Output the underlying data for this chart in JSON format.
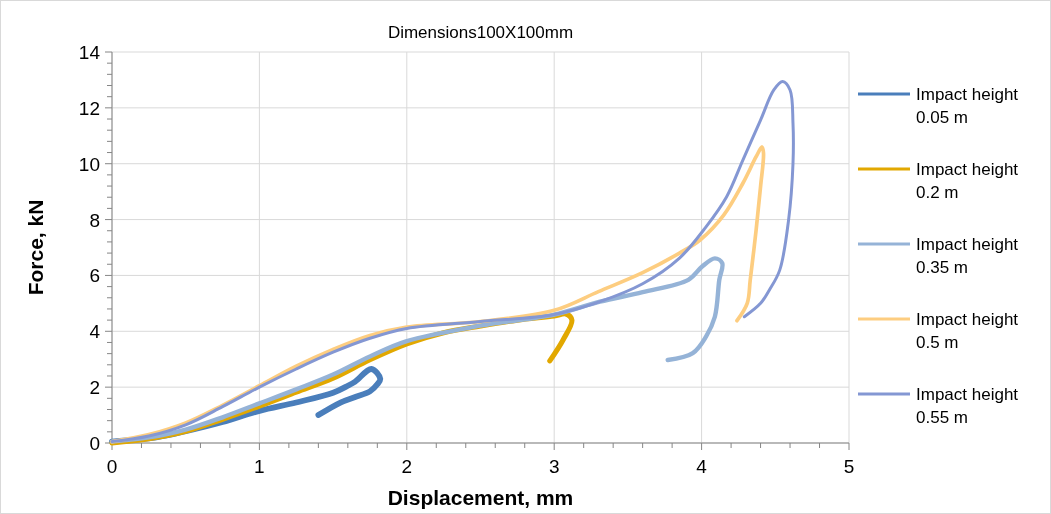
{
  "chart_data": {
    "type": "line",
    "title": "Dimensions100X100mm",
    "xlabel": "Displacement, mm",
    "ylabel": "Force, kN",
    "xlim": [
      0,
      5
    ],
    "ylim": [
      0,
      14
    ],
    "xticks": [
      0,
      {
        "value": 0.2,
        "label": null
      },
      {
        "value": 0.4,
        "label": null
      },
      {
        "value": 0.6,
        "label": null
      },
      {
        "value": 0.8,
        "label": null
      },
      1,
      {
        "value": 1.2,
        "label": null
      },
      {
        "value": 1.4,
        "label": null
      },
      {
        "value": 1.6,
        "label": null
      },
      {
        "value": 1.8,
        "label": null
      },
      2,
      {
        "value": 2.2,
        "label": null
      },
      {
        "value": 2.4,
        "label": null
      },
      {
        "value": 2.6,
        "label": null
      },
      {
        "value": 2.8,
        "label": null
      },
      3,
      {
        "value": 3.2,
        "label": null
      },
      {
        "value": 3.4,
        "label": null
      },
      {
        "value": 3.6,
        "label": null
      },
      {
        "value": 3.8,
        "label": null
      },
      4,
      {
        "value": 4.2,
        "label": null
      },
      {
        "value": 4.4,
        "label": null
      },
      {
        "value": 4.6,
        "label": null
      },
      {
        "value": 4.8,
        "label": null
      },
      5
    ],
    "yticks": [
      0,
      {
        "value": 0.4,
        "label": null
      },
      {
        "value": 0.8,
        "label": null
      },
      {
        "value": 1.2,
        "label": null
      },
      {
        "value": 1.6,
        "label": null
      },
      2,
      {
        "value": 2.4,
        "label": null
      },
      {
        "value": 2.8,
        "label": null
      },
      {
        "value": 3.2,
        "label": null
      },
      {
        "value": 3.6,
        "label": null
      },
      4,
      {
        "value": 4.4,
        "label": null
      },
      {
        "value": 4.8,
        "label": null
      },
      {
        "value": 5.2,
        "label": null
      },
      {
        "value": 5.6,
        "label": null
      },
      6,
      {
        "value": 6.4,
        "label": null
      },
      {
        "value": 6.8,
        "label": null
      },
      {
        "value": 7.2,
        "label": null
      },
      {
        "value": 7.6,
        "label": null
      },
      8,
      {
        "value": 8.4,
        "label": null
      },
      {
        "value": 8.8,
        "label": null
      },
      {
        "value": 9.2,
        "label": null
      },
      {
        "value": 9.6,
        "label": null
      },
      10,
      {
        "value": 10.4,
        "label": null
      },
      {
        "value": 10.8,
        "label": null
      },
      {
        "value": 11.2,
        "label": null
      },
      {
        "value": 11.6,
        "label": null
      },
      12,
      {
        "value": 12.4,
        "label": null
      },
      {
        "value": 12.8,
        "label": null
      },
      {
        "value": 13.2,
        "label": null
      },
      {
        "value": 13.6,
        "label": null
      },
      14
    ],
    "grid": true,
    "legend": "right",
    "marker": "none",
    "line_style": "solid",
    "series": [
      {
        "name": "Impact height 0.05 m",
        "color": "#4a7ebb",
        "x": [
          0,
          0.3,
          0.5,
          0.75,
          1,
          1.25,
          1.5,
          1.6,
          1.65,
          1.76,
          1.82,
          1.8,
          1.75,
          1.65,
          1.55,
          1.4
        ],
        "values": [
          0.05,
          0.2,
          0.42,
          0.75,
          1.15,
          1.45,
          1.8,
          2.05,
          2.2,
          2.65,
          2.3,
          2.1,
          1.85,
          1.65,
          1.45,
          1.0
        ]
      },
      {
        "name": "Impact height 0.2 m",
        "color": "#e2a800",
        "x": [
          0,
          0.25,
          0.5,
          0.75,
          1,
          1.25,
          1.5,
          1.75,
          2,
          2.25,
          2.5,
          2.75,
          3,
          3.08,
          3.12,
          3.06,
          2.97
        ],
        "values": [
          0,
          0.15,
          0.42,
          0.85,
          1.32,
          1.82,
          2.32,
          2.98,
          3.55,
          3.95,
          4.19,
          4.4,
          4.55,
          4.62,
          4.4,
          3.69,
          2.94
        ]
      },
      {
        "name": "Impact height 0.35 m",
        "color": "#95b3d7",
        "x": [
          0,
          0.25,
          0.5,
          0.75,
          1,
          1.25,
          1.5,
          1.75,
          2,
          2.5,
          3,
          3.31,
          3.6,
          3.91,
          4.0,
          4.09,
          4.14,
          4.12,
          4.09,
          4.03,
          3.94,
          3.77
        ],
        "values": [
          0.05,
          0.2,
          0.48,
          0.92,
          1.42,
          1.92,
          2.45,
          3.1,
          3.65,
          4.2,
          4.6,
          5.06,
          5.4,
          5.84,
          6.3,
          6.61,
          6.44,
          5.84,
          4.52,
          3.81,
          3.22,
          2.97
        ]
      },
      {
        "name": "Impact height 0.5 m",
        "color": "#fdcd80",
        "x": [
          0,
          0.25,
          0.5,
          0.75,
          1,
          1.25,
          1.5,
          1.75,
          2,
          2.5,
          3,
          3.3,
          3.6,
          3.85,
          3.99,
          4.15,
          4.28,
          4.37,
          4.41,
          4.42,
          4.4,
          4.37,
          4.33,
          4.31,
          4.24
        ],
        "values": [
          0.05,
          0.3,
          0.72,
          1.35,
          2.05,
          2.75,
          3.35,
          3.85,
          4.15,
          4.35,
          4.75,
          5.42,
          6.1,
          6.8,
          7.27,
          8.16,
          9.3,
          10.25,
          10.6,
          10.38,
          9.18,
          7.63,
          5.84,
          5.01,
          4.38
        ]
      },
      {
        "name": "Impact height 0.55 m",
        "color": "#8497d3",
        "x": [
          0,
          0.25,
          0.5,
          0.75,
          1,
          1.25,
          1.5,
          1.75,
          2,
          2.5,
          3,
          3.31,
          3.6,
          3.85,
          4.03,
          4.17,
          4.28,
          4.4,
          4.49,
          4.55,
          4.6,
          4.62,
          4.62,
          4.59,
          4.53,
          4.46,
          4.4,
          4.29
        ],
        "values": [
          0.05,
          0.25,
          0.65,
          1.3,
          2.0,
          2.65,
          3.25,
          3.75,
          4.1,
          4.35,
          4.6,
          5.06,
          5.7,
          6.62,
          7.74,
          8.82,
          10.13,
          11.56,
          12.64,
          12.94,
          12.64,
          11.45,
          10.0,
          7.98,
          6.19,
          5.48,
          5.0,
          4.52
        ]
      }
    ]
  }
}
